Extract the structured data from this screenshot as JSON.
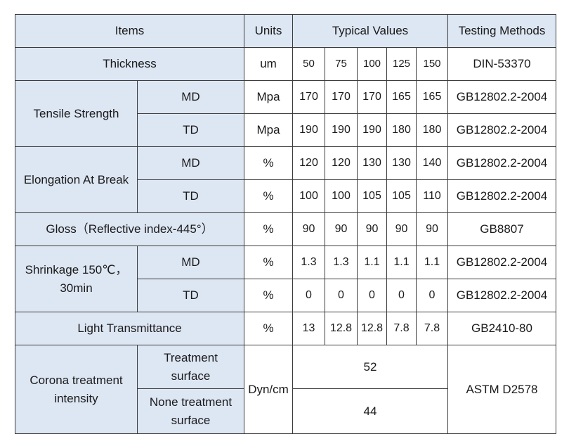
{
  "header": {
    "items": "Items",
    "units": "Units",
    "typical_values": "Typical Values",
    "testing_methods": "Testing Methods"
  },
  "thickness": {
    "label": "Thickness",
    "unit": "um",
    "values": [
      "50",
      "75",
      "100",
      "125",
      "150"
    ],
    "method": "DIN-53370"
  },
  "tensile": {
    "label": "Tensile Strength",
    "md": {
      "label": "MD",
      "unit": "Mpa",
      "values": [
        "170",
        "170",
        "170",
        "165",
        "165"
      ],
      "method": "GB12802.2-2004"
    },
    "td": {
      "label": "TD",
      "unit": "Mpa",
      "values": [
        "190",
        "190",
        "190",
        "180",
        "180"
      ],
      "method": "GB12802.2-2004"
    }
  },
  "elongation": {
    "label": "Elongation At Break",
    "md": {
      "label": "MD",
      "unit": "%",
      "values": [
        "120",
        "120",
        "130",
        "130",
        "140"
      ],
      "method": "GB12802.2-2004"
    },
    "td": {
      "label": "TD",
      "unit": "%",
      "values": [
        "100",
        "100",
        "105",
        "105",
        "110"
      ],
      "method": "GB12802.2-2004"
    }
  },
  "gloss": {
    "label": "Gloss（Reflective index-445°）",
    "unit": "%",
    "values": [
      "90",
      "90",
      "90",
      "90",
      "90"
    ],
    "method": "GB8807"
  },
  "shrinkage": {
    "label_line1": "Shrinkage 150℃，",
    "label_line2": "30min",
    "md": {
      "label": "MD",
      "unit": "%",
      "values": [
        "1.3",
        "1.3",
        "1.1",
        "1.1",
        "1.1"
      ],
      "method": "GB12802.2-2004"
    },
    "td": {
      "label": "TD",
      "unit": "%",
      "values": [
        "0",
        "0",
        "0",
        "0",
        "0"
      ],
      "method": "GB12802.2-2004"
    }
  },
  "light": {
    "label": "Light Transmittance",
    "unit": "%",
    "values": [
      "13",
      "12.8",
      "12.8",
      "7.8",
      "7.8"
    ],
    "method": "GB2410-80"
  },
  "corona": {
    "label_line1": "Corona treatment",
    "label_line2": "intensity",
    "unit": "Dyn/cm",
    "method": "ASTM D2578",
    "treated": {
      "line1": "Treatment",
      "line2": "surface",
      "value": "52"
    },
    "untreated": {
      "line1": "None treatment",
      "line2": "surface",
      "value": "44"
    }
  },
  "colors": {
    "label_fill": "#dde6f3",
    "border": "#3b3b3b",
    "text": "#1a1a1a"
  }
}
